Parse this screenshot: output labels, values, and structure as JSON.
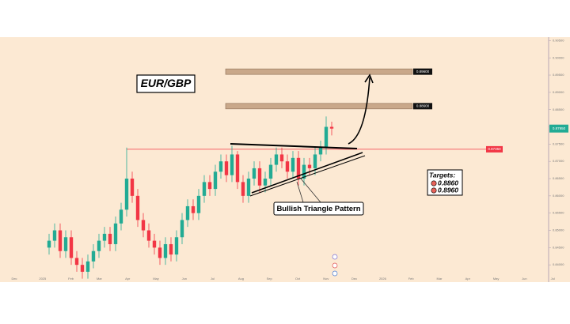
{
  "chart_data": {
    "type": "candlestick",
    "title": "EUR/GBP",
    "ylim": [
      0.835,
      0.906
    ],
    "yticks": [
      {
        "value": 0.905,
        "label": "0.90500"
      },
      {
        "value": 0.9,
        "label": "0.90000"
      },
      {
        "value": 0.895,
        "label": "0.89500"
      },
      {
        "value": 0.89,
        "label": "0.89000"
      },
      {
        "value": 0.885,
        "label": "0.88500"
      },
      {
        "value": 0.88,
        "label": "0.88000"
      },
      {
        "value": 0.875,
        "label": "0.87500"
      },
      {
        "value": 0.87,
        "label": "0.87000"
      },
      {
        "value": 0.865,
        "label": "0.86500"
      },
      {
        "value": 0.86,
        "label": "0.86000"
      },
      {
        "value": 0.855,
        "label": "0.85500"
      },
      {
        "value": 0.85,
        "label": "0.85000"
      },
      {
        "value": 0.845,
        "label": "0.84500"
      },
      {
        "value": 0.84,
        "label": "0.84000"
      }
    ],
    "x_labels": [
      "Dec",
      "2025",
      "Feb",
      "Mar",
      "Apr",
      "May",
      "Jun",
      "Jul",
      "Aug",
      "Sep",
      "Oct",
      "Nov",
      "Dec",
      "2026",
      "Feb",
      "Mar",
      "Apr",
      "May",
      "Jun",
      "Jul"
    ],
    "up_color": "#22ab94",
    "down_color": "#f23645",
    "open": [
      0.845,
      0.847,
      0.85,
      0.844,
      0.848,
      0.842,
      0.84,
      0.838,
      0.841,
      0.844,
      0.847,
      0.849,
      0.846,
      0.852,
      0.856,
      0.865,
      0.86,
      0.853,
      0.85,
      0.847,
      0.845,
      0.842,
      0.846,
      0.843,
      0.848,
      0.853,
      0.857,
      0.855,
      0.86,
      0.864,
      0.862,
      0.867,
      0.87,
      0.866,
      0.872,
      0.864,
      0.86,
      0.865,
      0.868,
      0.863,
      0.865,
      0.869,
      0.872,
      0.87,
      0.867,
      0.871,
      0.865,
      0.869,
      0.868,
      0.872,
      0.874,
      0.88
    ],
    "high": [
      0.849,
      0.852,
      0.852,
      0.85,
      0.85,
      0.844,
      0.842,
      0.843,
      0.846,
      0.849,
      0.851,
      0.851,
      0.854,
      0.858,
      0.874,
      0.867,
      0.862,
      0.855,
      0.852,
      0.849,
      0.847,
      0.848,
      0.848,
      0.85,
      0.855,
      0.859,
      0.859,
      0.862,
      0.866,
      0.866,
      0.869,
      0.872,
      0.872,
      0.8745,
      0.873,
      0.866,
      0.867,
      0.87,
      0.87,
      0.867,
      0.871,
      0.874,
      0.874,
      0.872,
      0.873,
      0.873,
      0.871,
      0.871,
      0.874,
      0.876,
      0.883,
      0.8815
    ],
    "low": [
      0.843,
      0.845,
      0.842,
      0.842,
      0.84,
      0.838,
      0.836,
      0.836,
      0.839,
      0.842,
      0.845,
      0.844,
      0.844,
      0.85,
      0.854,
      0.858,
      0.851,
      0.848,
      0.845,
      0.843,
      0.84,
      0.84,
      0.841,
      0.841,
      0.846,
      0.851,
      0.853,
      0.853,
      0.858,
      0.86,
      0.86,
      0.865,
      0.864,
      0.864,
      0.862,
      0.858,
      0.858,
      0.863,
      0.861,
      0.861,
      0.863,
      0.867,
      0.868,
      0.865,
      0.865,
      0.863,
      0.863,
      0.866,
      0.866,
      0.87,
      0.872,
      0.8775
    ],
    "close": [
      0.847,
      0.85,
      0.844,
      0.848,
      0.842,
      0.84,
      0.838,
      0.841,
      0.844,
      0.847,
      0.849,
      0.846,
      0.852,
      0.856,
      0.865,
      0.86,
      0.853,
      0.85,
      0.847,
      0.845,
      0.842,
      0.846,
      0.843,
      0.848,
      0.853,
      0.857,
      0.855,
      0.86,
      0.864,
      0.862,
      0.867,
      0.87,
      0.866,
      0.872,
      0.864,
      0.86,
      0.865,
      0.868,
      0.863,
      0.865,
      0.869,
      0.872,
      0.87,
      0.867,
      0.871,
      0.865,
      0.869,
      0.868,
      0.872,
      0.874,
      0.88,
      0.8795
    ],
    "levels": [
      {
        "value": 0.896,
        "label": "0.89600"
      },
      {
        "value": 0.886,
        "label": "0.88600"
      }
    ],
    "resistance": {
      "value": 0.8735,
      "label": "0.87350",
      "color": "#f23645"
    },
    "last_price": {
      "value": 0.8795,
      "label": "0.87950",
      "color": "#22ab94"
    },
    "pattern_label": "Bullish Triangle Pattern",
    "targets_title": "Targets:",
    "targets": [
      0.886,
      0.896
    ],
    "target_labels": [
      "0.8860",
      "0.8960"
    ]
  }
}
